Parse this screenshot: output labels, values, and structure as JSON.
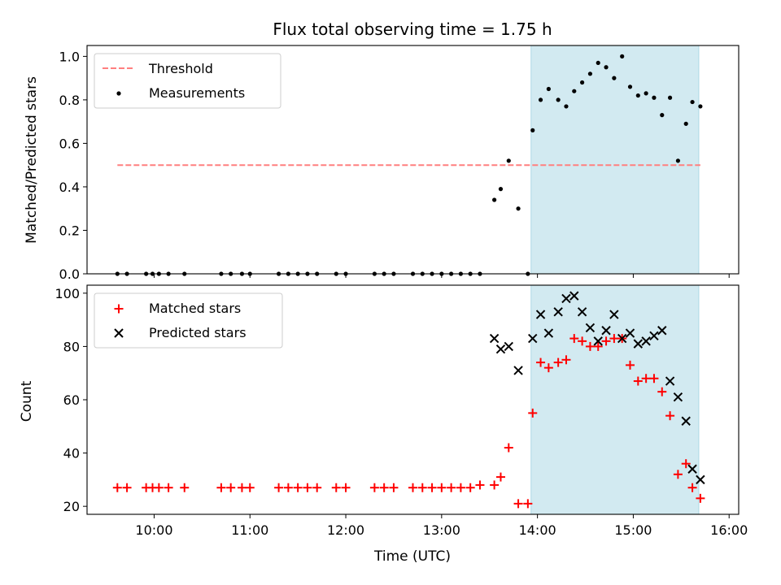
{
  "chart_data": {
    "type": "scatter",
    "title": "Flux total observing time = 1.75 h",
    "x_unit": "hours UTC",
    "xlim": [
      "09:18",
      "16:06"
    ],
    "xticks": [
      "10:00",
      "11:00",
      "12:00",
      "13:00",
      "14:00",
      "15:00",
      "16:00"
    ],
    "xlabel": "Time (UTC)",
    "observing_window": {
      "start": "13:56",
      "end": "15:41",
      "color": "#add8e6"
    },
    "top": {
      "ylabel": "Matched/Predicted stars",
      "ylim": [
        0,
        1.05
      ],
      "yticks": [
        "0.0",
        "0.2",
        "0.4",
        "0.6",
        "0.8",
        "1.0"
      ],
      "legend_position": "upper-left",
      "threshold": {
        "name": "Threshold",
        "value": 0.5,
        "x_start": "09:37",
        "x_end": "15:42",
        "color": "#ff7f7f"
      },
      "measurements": {
        "name": "Measurements",
        "color": "#000000",
        "x": [
          "09:37",
          "09:43",
          "09:55",
          "09:59",
          "10:03",
          "10:09",
          "10:19",
          "10:42",
          "10:48",
          "10:55",
          "11:00",
          "11:18",
          "11:24",
          "11:30",
          "11:36",
          "11:42",
          "11:54",
          "12:00",
          "12:18",
          "12:24",
          "12:30",
          "12:42",
          "12:48",
          "12:54",
          "13:00",
          "13:06",
          "13:12",
          "13:18",
          "13:24",
          "13:33",
          "13:37",
          "13:42",
          "13:48",
          "13:54",
          "13:57",
          "14:02",
          "14:07",
          "14:13",
          "14:18",
          "14:23",
          "14:28",
          "14:33",
          "14:38",
          "14:43",
          "14:48",
          "14:53",
          "14:58",
          "15:03",
          "15:08",
          "15:13",
          "15:18",
          "15:23",
          "15:28",
          "15:33",
          "15:37",
          "15:42"
        ],
        "y": [
          0,
          0,
          0,
          0,
          0,
          0,
          0,
          0,
          0,
          0,
          0,
          0,
          0,
          0,
          0,
          0,
          0,
          0,
          0,
          0,
          0,
          0,
          0,
          0,
          0,
          0,
          0,
          0,
          0,
          0.34,
          0.39,
          0.52,
          0.3,
          0,
          0.66,
          0.8,
          0.85,
          0.8,
          0.77,
          0.84,
          0.88,
          0.92,
          0.97,
          0.95,
          0.9,
          1.0,
          0.86,
          0.82,
          0.83,
          0.81,
          0.73,
          0.81,
          0.52,
          0.69,
          0.79,
          0.77
        ]
      }
    },
    "bottom": {
      "ylabel": "Count",
      "ylim": [
        17,
        103
      ],
      "yticks": [
        "20",
        "40",
        "60",
        "80",
        "100"
      ],
      "legend_position": "upper-left",
      "series": [
        {
          "name": "Matched stars",
          "marker": "plus",
          "color": "#ff0000",
          "x": [
            "09:37",
            "09:43",
            "09:55",
            "09:59",
            "10:03",
            "10:09",
            "10:19",
            "10:42",
            "10:48",
            "10:55",
            "11:00",
            "11:18",
            "11:24",
            "11:30",
            "11:36",
            "11:42",
            "11:54",
            "12:00",
            "12:18",
            "12:24",
            "12:30",
            "12:42",
            "12:48",
            "12:54",
            "13:00",
            "13:06",
            "13:12",
            "13:18",
            "13:24",
            "13:33",
            "13:37",
            "13:42",
            "13:48",
            "13:54",
            "13:57",
            "14:02",
            "14:07",
            "14:13",
            "14:18",
            "14:23",
            "14:28",
            "14:33",
            "14:38",
            "14:43",
            "14:48",
            "14:53",
            "14:58",
            "15:03",
            "15:08",
            "15:13",
            "15:18",
            "15:23",
            "15:28",
            "15:33",
            "15:37",
            "15:42"
          ],
          "y": [
            27,
            27,
            27,
            27,
            27,
            27,
            27,
            27,
            27,
            27,
            27,
            27,
            27,
            27,
            27,
            27,
            27,
            27,
            27,
            27,
            27,
            27,
            27,
            27,
            27,
            27,
            27,
            27,
            28,
            28,
            31,
            42,
            21,
            21,
            55,
            74,
            72,
            74,
            75,
            83,
            82,
            80,
            80,
            82,
            83,
            83,
            73,
            67,
            68,
            68,
            63,
            54,
            32,
            36,
            27,
            23
          ]
        },
        {
          "name": "Predicted stars",
          "marker": "x",
          "color": "#000000",
          "x": [
            "13:33",
            "13:37",
            "13:42",
            "13:48",
            "13:57",
            "14:02",
            "14:07",
            "14:13",
            "14:18",
            "14:23",
            "14:28",
            "14:33",
            "14:38",
            "14:43",
            "14:48",
            "14:53",
            "14:58",
            "15:03",
            "15:08",
            "15:13",
            "15:18",
            "15:23",
            "15:28",
            "15:33",
            "15:37",
            "15:42"
          ],
          "y": [
            83,
            79,
            80,
            71,
            83,
            92,
            85,
            93,
            98,
            99,
            93,
            87,
            82,
            86,
            92,
            83,
            85,
            81,
            82,
            84,
            86,
            67,
            61,
            52,
            34,
            30
          ]
        }
      ]
    }
  }
}
